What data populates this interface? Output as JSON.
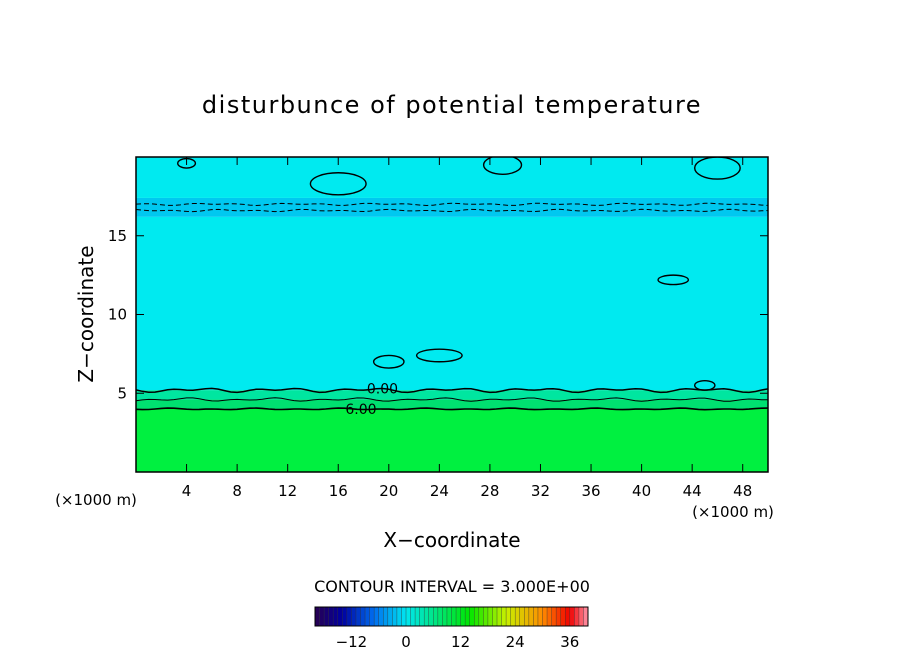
{
  "chart_data": {
    "type": "heatmap",
    "title": "disturbunce of potential temperature",
    "xlabel": "X−coordinate",
    "ylabel": "Z−coordinate",
    "x_unit": "(×1000 m)",
    "z_unit": "(×1000 m)",
    "xlim": [
      0,
      50
    ],
    "ylim": [
      0,
      20
    ],
    "x_ticks": [
      4,
      8,
      12,
      16,
      20,
      24,
      28,
      32,
      36,
      40,
      44,
      48
    ],
    "y_ticks": [
      5,
      10,
      15
    ],
    "contour_interval_text": "CONTOUR INTERVAL = 3.000E+00",
    "contour_labels": [
      {
        "text": "0.00",
        "x": 19.5,
        "z": 5.3
      },
      {
        "text": "6.00",
        "x": 17.8,
        "z": 4.0
      }
    ],
    "fields": [
      {
        "z_range": [
          0,
          4.0
        ],
        "value": 11,
        "color": "#00f040"
      },
      {
        "z_range": [
          4.0,
          4.6
        ],
        "value": 6,
        "color": "#00e070"
      },
      {
        "z_range": [
          4.6,
          5.2
        ],
        "value": 3,
        "color": "#00e6a0"
      },
      {
        "z_range": [
          5.2,
          16.2
        ],
        "value": 0,
        "color": "#00eaf0"
      },
      {
        "z_range": [
          16.2,
          17.4
        ],
        "value": -3,
        "color": "#00c8f0"
      },
      {
        "z_range": [
          17.4,
          20
        ],
        "value": 0,
        "color": "#00eaf0"
      }
    ],
    "colorbar": {
      "min": -20,
      "max": 40,
      "ticks": [
        -12,
        0,
        12,
        24,
        36
      ],
      "tick_labels": [
        "−12",
        "0",
        "12",
        "24",
        "36"
      ]
    }
  }
}
